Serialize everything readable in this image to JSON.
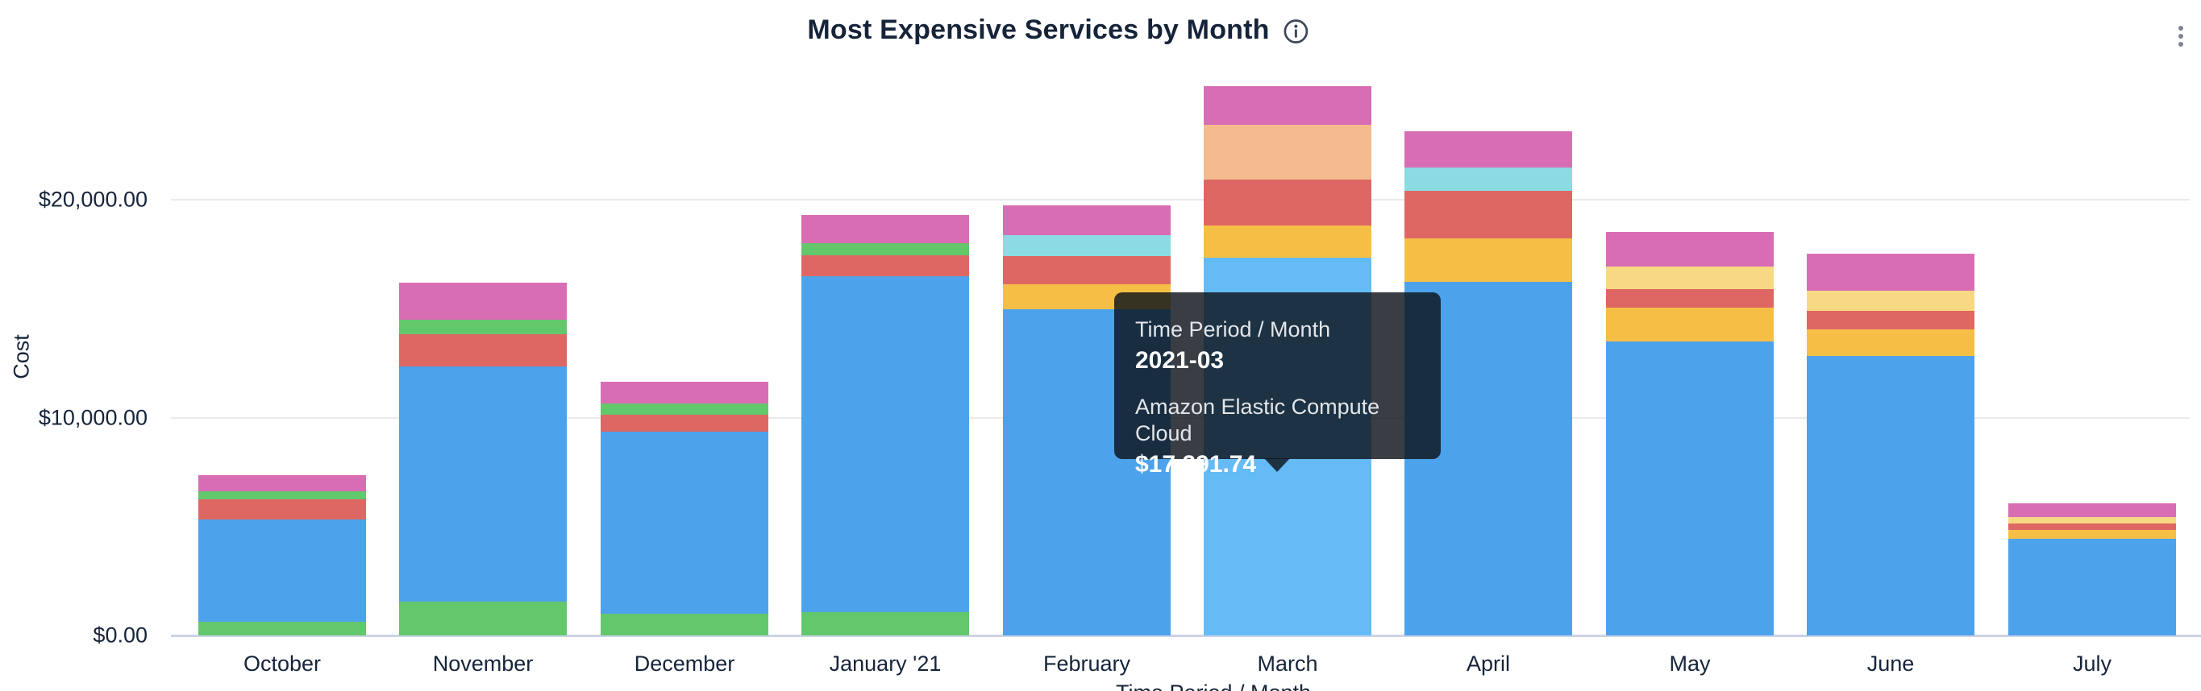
{
  "header": {
    "title": "Most Expensive Services by Month",
    "info_icon": "info-circle-icon",
    "menu_icon": "kebab-vertical-icon"
  },
  "tooltip": {
    "header_label": "Time Period / Month",
    "header_value": "2021-03",
    "series_label": "Amazon Elastic Compute Cloud",
    "series_value": "$17,291.74"
  },
  "chart_data": {
    "type": "bar",
    "stacked": true,
    "title": "Most Expensive Services by Month",
    "xlabel": "Time Period / Month",
    "ylabel": "Cost",
    "ylim": [
      0,
      25500
    ],
    "y_ticks": [
      0,
      10000,
      20000
    ],
    "y_tick_labels": [
      "$0.00",
      "$10,000.00",
      "$20,000.00"
    ],
    "grid": true,
    "legend": "none",
    "categories": [
      "October",
      "November",
      "December",
      "January '21",
      "February",
      "March",
      "April",
      "May",
      "June",
      "July"
    ],
    "palette": {
      "green": "#63c76c",
      "blue": "#4da2ec",
      "blue_highlight": "#64bbf6",
      "red": "#df6763",
      "pink": "#d96db4",
      "amber": "#f5bf45",
      "teal": "#8adbe2",
      "peach": "#f5bb8f",
      "pale_yellow": "#f8d983"
    },
    "known_series_names": {
      "blue": "Amazon Elastic Compute Cloud",
      "blue_highlight": "Amazon Elastic Compute Cloud"
    },
    "hovered_bar": "March",
    "bars": [
      {
        "category": "October",
        "segments": [
          {
            "color_key": "green",
            "value": 630
          },
          {
            "color_key": "blue",
            "value": 4700
          },
          {
            "color_key": "red",
            "value": 890
          },
          {
            "color_key": "green",
            "value": 370
          },
          {
            "color_key": "pink",
            "value": 740
          }
        ]
      },
      {
        "category": "November",
        "segments": [
          {
            "color_key": "green",
            "value": 1555
          },
          {
            "color_key": "blue",
            "value": 10770
          },
          {
            "color_key": "red",
            "value": 1480
          },
          {
            "color_key": "green",
            "value": 665
          },
          {
            "color_key": "pink",
            "value": 1700
          }
        ]
      },
      {
        "category": "December",
        "segments": [
          {
            "color_key": "green",
            "value": 1000
          },
          {
            "color_key": "blue",
            "value": 8325
          },
          {
            "color_key": "red",
            "value": 777
          },
          {
            "color_key": "green",
            "value": 518
          },
          {
            "color_key": "pink",
            "value": 1000
          }
        ]
      },
      {
        "category": "January '21",
        "segments": [
          {
            "color_key": "green",
            "value": 1073
          },
          {
            "color_key": "blue",
            "value": 15390
          },
          {
            "color_key": "red",
            "value": 962
          },
          {
            "color_key": "green",
            "value": 555
          },
          {
            "color_key": "pink",
            "value": 1295
          }
        ]
      },
      {
        "category": "February",
        "segments": [
          {
            "color_key": "blue",
            "value": 14950
          },
          {
            "color_key": "amber",
            "value": 1147
          },
          {
            "color_key": "red",
            "value": 1295
          },
          {
            "color_key": "teal",
            "value": 962
          },
          {
            "color_key": "pink",
            "value": 1369
          }
        ]
      },
      {
        "category": "March",
        "highlighted": true,
        "segments": [
          {
            "color_key": "blue_highlight",
            "value": 17291.74
          },
          {
            "color_key": "amber",
            "value": 1480
          },
          {
            "color_key": "red",
            "value": 2109
          },
          {
            "color_key": "peach",
            "value": 2516
          },
          {
            "color_key": "pink",
            "value": 1776
          }
        ]
      },
      {
        "category": "April",
        "segments": [
          {
            "color_key": "blue",
            "value": 16200
          },
          {
            "color_key": "amber",
            "value": 2000
          },
          {
            "color_key": "red",
            "value": 2180
          },
          {
            "color_key": "teal",
            "value": 1073
          },
          {
            "color_key": "pink",
            "value": 1665
          }
        ]
      },
      {
        "category": "May",
        "segments": [
          {
            "color_key": "blue",
            "value": 13470
          },
          {
            "color_key": "amber",
            "value": 1554
          },
          {
            "color_key": "red",
            "value": 851
          },
          {
            "color_key": "pale_yellow",
            "value": 1036
          },
          {
            "color_key": "pink",
            "value": 1590
          }
        ]
      },
      {
        "category": "June",
        "segments": [
          {
            "color_key": "blue",
            "value": 12800
          },
          {
            "color_key": "amber",
            "value": 1220
          },
          {
            "color_key": "red",
            "value": 851
          },
          {
            "color_key": "pale_yellow",
            "value": 925
          },
          {
            "color_key": "pink",
            "value": 1700
          }
        ]
      },
      {
        "category": "July",
        "segments": [
          {
            "color_key": "blue",
            "value": 4440
          },
          {
            "color_key": "amber",
            "value": 407
          },
          {
            "color_key": "red",
            "value": 296
          },
          {
            "color_key": "pale_yellow",
            "value": 296
          },
          {
            "color_key": "pink",
            "value": 629
          }
        ]
      }
    ]
  }
}
